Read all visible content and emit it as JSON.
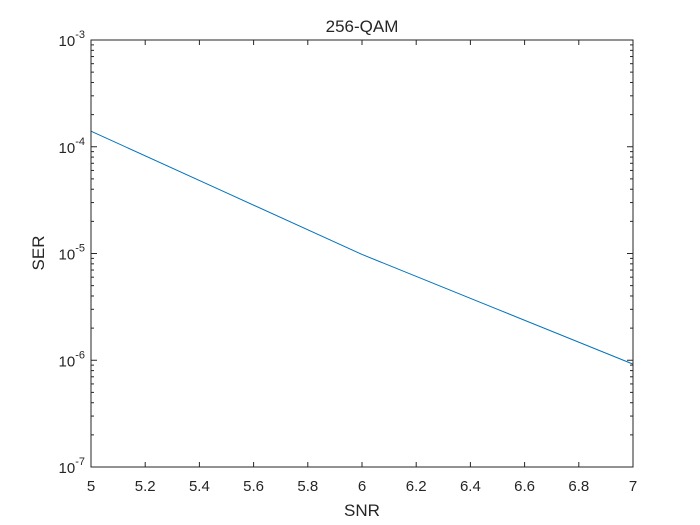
{
  "chart_data": {
    "type": "line",
    "title": "256-QAM",
    "xlabel": "SNR",
    "ylabel": "SER",
    "xlim": [
      5,
      7
    ],
    "ylim": [
      1e-07,
      0.001
    ],
    "yscale": "log",
    "grid": false,
    "x_ticks": [
      5,
      5.2,
      5.4,
      5.6,
      5.8,
      6,
      6.2,
      6.4,
      6.6,
      6.8,
      7
    ],
    "x_tick_labels": [
      "5",
      "5.2",
      "5.4",
      "5.6",
      "5.8",
      "6",
      "6.2",
      "6.4",
      "6.6",
      "6.8",
      "7"
    ],
    "y_ticks": [
      {
        "value": 1e-07,
        "base": "10",
        "exp": "-7"
      },
      {
        "value": 1e-06,
        "base": "10",
        "exp": "-6"
      },
      {
        "value": 1e-05,
        "base": "10",
        "exp": "-5"
      },
      {
        "value": 0.0001,
        "base": "10",
        "exp": "-4"
      },
      {
        "value": 0.001,
        "base": "10",
        "exp": "-3"
      }
    ],
    "series": [
      {
        "color": "#0072BD",
        "x": [
          5,
          5.5,
          6,
          6.5,
          7
        ],
        "y": [
          0.00014,
          3.7e-05,
          9.8e-06,
          3e-06,
          9.2e-07
        ]
      }
    ]
  }
}
